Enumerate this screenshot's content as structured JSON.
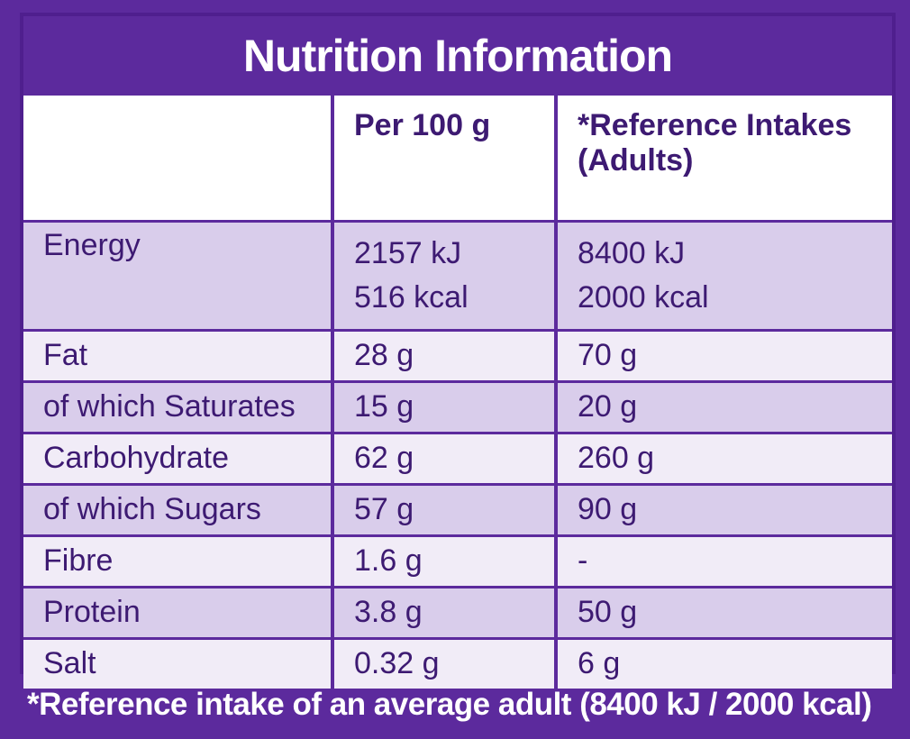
{
  "title": "Nutrition Information",
  "header": {
    "col1": "",
    "col2": "Per 100 g",
    "col3_line1": "*Reference Intakes",
    "col3_line2": "(Adults)"
  },
  "energy": {
    "label": "Energy",
    "per100_kj": "2157 kJ",
    "per100_kcal": "516 kcal",
    "ri_kj": "8400 kJ",
    "ri_kcal": "2000 kcal"
  },
  "rows": [
    {
      "label": "Fat",
      "per100": "28 g",
      "ri": "70 g"
    },
    {
      "label": "of which Saturates",
      "per100": "15 g",
      "ri": "20 g"
    },
    {
      "label": "Carbohydrate",
      "per100": "62 g",
      "ri": "260 g"
    },
    {
      "label": "of which Sugars",
      "per100": "57 g",
      "ri": "90 g"
    },
    {
      "label": "Fibre",
      "per100": "1.6 g",
      "ri": "-"
    },
    {
      "label": "Protein",
      "per100": "3.8 g",
      "ri": "50 g"
    },
    {
      "label": "Salt",
      "per100": "0.32 g",
      "ri": "6 g"
    }
  ],
  "footnote": "*Reference intake of an average adult (8400 kJ / 2000 kcal)",
  "colors": {
    "brand_purple": "#5c2a9d",
    "row_shade": "#d9cdeb",
    "row_light": "#f1ecf7",
    "text": "#3d1a72"
  }
}
